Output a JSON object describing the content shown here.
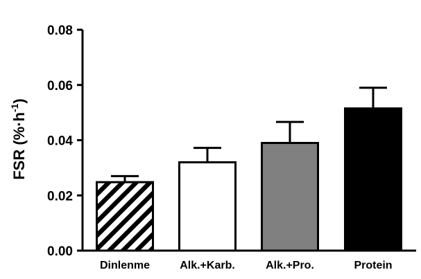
{
  "chart_data": {
    "type": "bar",
    "title": "",
    "ylabel": "FSR (%·h-1)",
    "ylabel_parts": {
      "base": "FSR (%·h",
      "superscript": "-1",
      "close": ")"
    },
    "xlabel": "",
    "ylim": [
      0,
      0.08
    ],
    "y_ticks": [
      "0.00",
      "0.02",
      "0.04",
      "0.06",
      "0.08"
    ],
    "y_tick_values": [
      0,
      0.02,
      0.04,
      0.06,
      0.08
    ],
    "categories": [
      "Dinlenme",
      "Alk.+Karb.",
      "Alk.+Pro.",
      "Protein"
    ],
    "values": [
      0.0248,
      0.032,
      0.039,
      0.0515
    ],
    "error_upper": [
      0.027,
      0.0372,
      0.0466,
      0.059
    ],
    "fills": [
      "hatch",
      "#ffffff",
      "#808080",
      "#000000"
    ],
    "grid": false,
    "legend": "none"
  }
}
